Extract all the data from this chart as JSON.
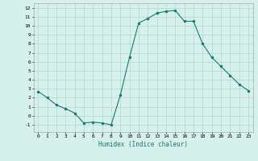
{
  "x": [
    0,
    1,
    2,
    3,
    4,
    5,
    6,
    7,
    8,
    9,
    10,
    11,
    12,
    13,
    14,
    15,
    16,
    17,
    18,
    19,
    20,
    21,
    22,
    23
  ],
  "y": [
    2.7,
    2.0,
    1.2,
    0.8,
    0.3,
    -0.8,
    -0.7,
    -0.8,
    -1.0,
    2.3,
    6.5,
    10.3,
    10.8,
    11.4,
    11.6,
    11.7,
    10.5,
    10.5,
    8.0,
    6.5,
    5.5,
    4.5,
    3.5,
    2.8
  ],
  "xlabel": "Humidex (Indice chaleur)",
  "ylim": [
    -1.8,
    12.5
  ],
  "xlim": [
    -0.5,
    23.5
  ],
  "yticks": [
    -1,
    0,
    1,
    2,
    3,
    4,
    5,
    6,
    7,
    8,
    9,
    10,
    11,
    12
  ],
  "xticks": [
    0,
    1,
    2,
    3,
    4,
    5,
    6,
    7,
    8,
    9,
    10,
    11,
    12,
    13,
    14,
    15,
    16,
    17,
    18,
    19,
    20,
    21,
    22,
    23
  ],
  "line_color": "#1a7a6e",
  "marker_color": "#1a7a6e",
  "bg_color": "#d6f0eb",
  "grid_color": "#b0d8d0",
  "xlabel_color": "#1a7a6e"
}
